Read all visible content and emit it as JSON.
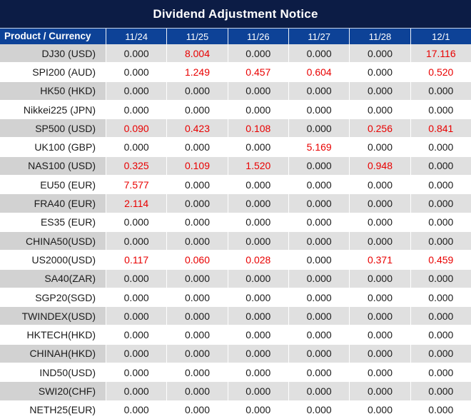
{
  "title": "Dividend Adjustment Notice",
  "colors": {
    "title_bar_bg": "#0c1c45",
    "header_bg": "#0d4297",
    "header_text": "#ffffff",
    "row_gray_label": "#d2d2d2",
    "row_gray_value": "#e0e0e0",
    "row_white": "#ffffff",
    "value_text": "#1b1b1b",
    "highlight_red": "#e90000",
    "separator": "#ffffff"
  },
  "table": {
    "product_header": "Product / Currency",
    "date_headers": [
      "11/24",
      "11/25",
      "11/26",
      "11/27",
      "11/28",
      "12/1"
    ],
    "rows": [
      {
        "label": "DJ30 (USD)",
        "values": [
          "0.000",
          "8.004",
          "0.000",
          "0.000",
          "0.000",
          "17.116"
        ],
        "red": [
          false,
          true,
          false,
          false,
          false,
          true
        ]
      },
      {
        "label": "SPI200 (AUD)",
        "values": [
          "0.000",
          "1.249",
          "0.457",
          "0.604",
          "0.000",
          "0.520"
        ],
        "red": [
          false,
          true,
          true,
          true,
          false,
          true
        ]
      },
      {
        "label": "HK50 (HKD)",
        "values": [
          "0.000",
          "0.000",
          "0.000",
          "0.000",
          "0.000",
          "0.000"
        ],
        "red": [
          false,
          false,
          false,
          false,
          false,
          false
        ]
      },
      {
        "label": "Nikkei225 (JPN)",
        "values": [
          "0.000",
          "0.000",
          "0.000",
          "0.000",
          "0.000",
          "0.000"
        ],
        "red": [
          false,
          false,
          false,
          false,
          false,
          false
        ]
      },
      {
        "label": "SP500 (USD)",
        "values": [
          "0.090",
          "0.423",
          "0.108",
          "0.000",
          "0.256",
          "0.841"
        ],
        "red": [
          true,
          true,
          true,
          false,
          true,
          true
        ]
      },
      {
        "label": "UK100 (GBP)",
        "values": [
          "0.000",
          "0.000",
          "0.000",
          "5.169",
          "0.000",
          "0.000"
        ],
        "red": [
          false,
          false,
          false,
          true,
          false,
          false
        ]
      },
      {
        "label": "NAS100 (USD)",
        "values": [
          "0.325",
          "0.109",
          "1.520",
          "0.000",
          "0.948",
          "0.000"
        ],
        "red": [
          true,
          true,
          true,
          false,
          true,
          false
        ]
      },
      {
        "label": "EU50 (EUR)",
        "values": [
          "7.577",
          "0.000",
          "0.000",
          "0.000",
          "0.000",
          "0.000"
        ],
        "red": [
          true,
          false,
          false,
          false,
          false,
          false
        ]
      },
      {
        "label": "FRA40 (EUR)",
        "values": [
          "2.114",
          "0.000",
          "0.000",
          "0.000",
          "0.000",
          "0.000"
        ],
        "red": [
          true,
          false,
          false,
          false,
          false,
          false
        ]
      },
      {
        "label": "ES35 (EUR)",
        "values": [
          "0.000",
          "0.000",
          "0.000",
          "0.000",
          "0.000",
          "0.000"
        ],
        "red": [
          false,
          false,
          false,
          false,
          false,
          false
        ]
      },
      {
        "label": "CHINA50(USD)",
        "values": [
          "0.000",
          "0.000",
          "0.000",
          "0.000",
          "0.000",
          "0.000"
        ],
        "red": [
          false,
          false,
          false,
          false,
          false,
          false
        ]
      },
      {
        "label": "US2000(USD)",
        "values": [
          "0.117",
          "0.060",
          "0.028",
          "0.000",
          "0.371",
          "0.459"
        ],
        "red": [
          true,
          true,
          true,
          false,
          true,
          true
        ]
      },
      {
        "label": "SA40(ZAR)",
        "values": [
          "0.000",
          "0.000",
          "0.000",
          "0.000",
          "0.000",
          "0.000"
        ],
        "red": [
          false,
          false,
          false,
          false,
          false,
          false
        ]
      },
      {
        "label": "SGP20(SGD)",
        "values": [
          "0.000",
          "0.000",
          "0.000",
          "0.000",
          "0.000",
          "0.000"
        ],
        "red": [
          false,
          false,
          false,
          false,
          false,
          false
        ]
      },
      {
        "label": "TWINDEX(USD)",
        "values": [
          "0.000",
          "0.000",
          "0.000",
          "0.000",
          "0.000",
          "0.000"
        ],
        "red": [
          false,
          false,
          false,
          false,
          false,
          false
        ]
      },
      {
        "label": "HKTECH(HKD)",
        "values": [
          "0.000",
          "0.000",
          "0.000",
          "0.000",
          "0.000",
          "0.000"
        ],
        "red": [
          false,
          false,
          false,
          false,
          false,
          false
        ]
      },
      {
        "label": "CHINAH(HKD)",
        "values": [
          "0.000",
          "0.000",
          "0.000",
          "0.000",
          "0.000",
          "0.000"
        ],
        "red": [
          false,
          false,
          false,
          false,
          false,
          false
        ]
      },
      {
        "label": "IND50(USD)",
        "values": [
          "0.000",
          "0.000",
          "0.000",
          "0.000",
          "0.000",
          "0.000"
        ],
        "red": [
          false,
          false,
          false,
          false,
          false,
          false
        ]
      },
      {
        "label": "SWI20(CHF)",
        "values": [
          "0.000",
          "0.000",
          "0.000",
          "0.000",
          "0.000",
          "0.000"
        ],
        "red": [
          false,
          false,
          false,
          false,
          false,
          false
        ]
      },
      {
        "label": "NETH25(EUR)",
        "values": [
          "0.000",
          "0.000",
          "0.000",
          "0.000",
          "0.000",
          "0.000"
        ],
        "red": [
          false,
          false,
          false,
          false,
          false,
          false
        ]
      }
    ]
  }
}
